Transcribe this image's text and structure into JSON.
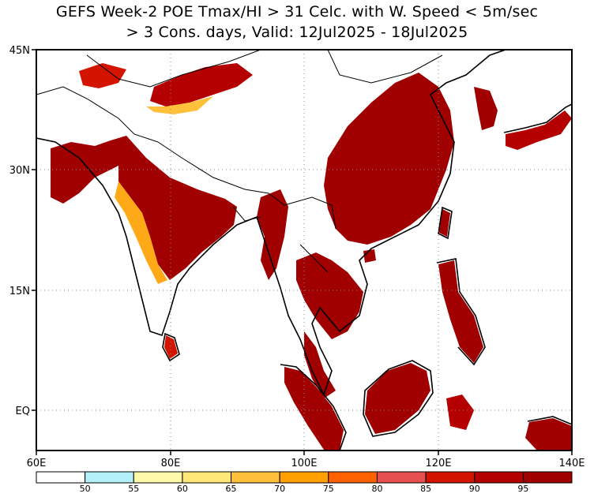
{
  "title": {
    "line1": "GEFS Week-2 POE Tmax/HI > 31 Celc. with W. Speed < 5m/sec",
    "line2": "> 3 Cons. days, Valid: 12Jul2025 - 18Jul2025"
  },
  "axes": {
    "lat_labels": [
      "45N",
      "30N",
      "15N",
      "EQ"
    ],
    "lon_labels": [
      "60E",
      "80E",
      "100E",
      "120E",
      "140E"
    ]
  },
  "colorbar": {
    "labels": [
      "50",
      "55",
      "60",
      "65",
      "70",
      "75",
      "80",
      "85",
      "90",
      "95"
    ],
    "colors": [
      "#ffffff",
      "#b4f0fa",
      "#fffaaa",
      "#ffe878",
      "#ffc03c",
      "#ffa000",
      "#ff6000",
      "#e65050",
      "#d21400",
      "#b40000",
      "#a00000"
    ]
  },
  "map": {
    "region": "South and East Asia, 60E-140E, 5S-45N",
    "ocean_color": "#ffffff",
    "land_outline_color": "#000000"
  }
}
